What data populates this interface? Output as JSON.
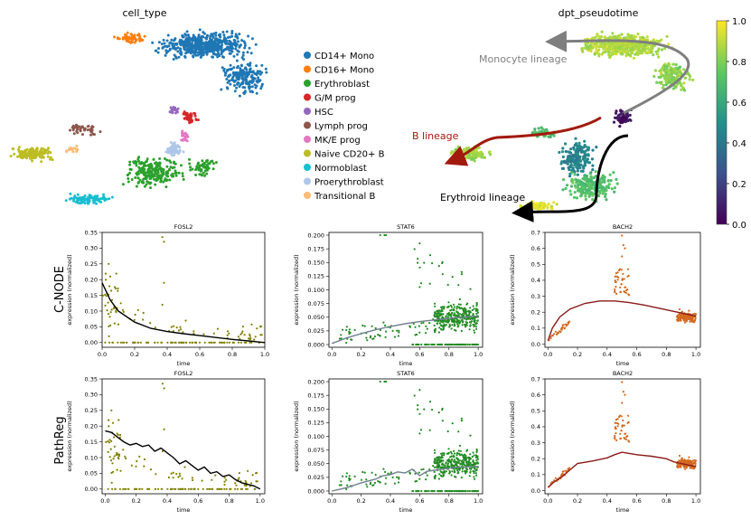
{
  "figure": {
    "umap_left": {
      "title": "cell_type",
      "legend": [
        {
          "label": "CD14+ Mono",
          "color": "#1f77b4"
        },
        {
          "label": "CD16+ Mono",
          "color": "#ff7f0e"
        },
        {
          "label": "Erythroblast",
          "color": "#2ca02c"
        },
        {
          "label": "G/M prog",
          "color": "#d62728"
        },
        {
          "label": "HSC",
          "color": "#9467bd"
        },
        {
          "label": "Lymph prog",
          "color": "#8c564b"
        },
        {
          "label": "MK/E prog",
          "color": "#e377c2"
        },
        {
          "label": "Naive CD20+ B",
          "color": "#bcbd22"
        },
        {
          "label": "Normoblast",
          "color": "#17becf"
        },
        {
          "label": "Proerythroblast",
          "color": "#aec7e8"
        },
        {
          "label": "Transitional B",
          "color": "#ffbb78"
        }
      ]
    },
    "umap_right": {
      "title": "dpt_pseudotime",
      "lineages": [
        {
          "label": "Monocyte lineage",
          "color": "#7f7f7f"
        },
        {
          "label": "B lineage",
          "color": "#a21a0e"
        },
        {
          "label": "Erythroid  lineage",
          "color": "#000000"
        }
      ],
      "colorbar": {
        "ticks": [
          "0.0",
          "0.2",
          "0.4",
          "0.6",
          "0.8",
          "1.0"
        ]
      }
    },
    "row_labels": [
      "C-NODE",
      "PathReg"
    ]
  },
  "chart_data": [
    {
      "type": "scatter",
      "id": "cnode-fosl2",
      "method": "C-NODE",
      "title": "FOSL2",
      "xlabel": "time",
      "ylabel": "expression (normalized)",
      "xlim": [
        0,
        1
      ],
      "ylim": [
        -0.015,
        0.35
      ],
      "xticks": [
        "0.0",
        "0.2",
        "0.4",
        "0.6",
        "0.8",
        "1.0"
      ],
      "yticks": [
        "0.00",
        "0.05",
        "0.10",
        "0.15",
        "0.20",
        "0.25",
        "0.30",
        "0.35"
      ],
      "point_color": "#808000",
      "line_color": "#000000",
      "curve": {
        "x": [
          0,
          0.05,
          0.1,
          0.2,
          0.3,
          0.4,
          0.5,
          0.6,
          0.7,
          0.8,
          0.9,
          1.0
        ],
        "y": [
          0.19,
          0.135,
          0.1,
          0.065,
          0.045,
          0.035,
          0.028,
          0.022,
          0.016,
          0.01,
          0.005,
          0.0
        ]
      }
    },
    {
      "type": "scatter",
      "id": "cnode-stat6",
      "method": "C-NODE",
      "title": "STAT6",
      "xlabel": "time",
      "ylabel": "expression (normalized)",
      "xlim": [
        -0.02,
        1.03
      ],
      "ylim": [
        -0.005,
        0.205
      ],
      "xticks": [
        "0.0",
        "0.2",
        "0.4",
        "0.6",
        "0.8",
        "1.0"
      ],
      "yticks": [
        "0.000",
        "0.025",
        "0.050",
        "0.075",
        "0.100",
        "0.125",
        "0.150",
        "0.175",
        "0.200"
      ],
      "point_color": "#228b22",
      "line_color": "#708090",
      "curve": {
        "x": [
          0,
          0.1,
          0.2,
          0.3,
          0.4,
          0.5,
          0.6,
          0.7,
          0.8,
          0.9,
          1.0
        ],
        "y": [
          0.002,
          0.012,
          0.02,
          0.027,
          0.033,
          0.038,
          0.042,
          0.045,
          0.048,
          0.05,
          0.052
        ]
      }
    },
    {
      "type": "scatter",
      "id": "cnode-bach2",
      "method": "C-NODE",
      "title": "BACH2",
      "xlabel": "time",
      "ylabel": "expression (normalized)",
      "xlim": [
        -0.02,
        1.03
      ],
      "ylim": [
        -0.02,
        0.7
      ],
      "xticks": [
        "0.0",
        "0.2",
        "0.4",
        "0.6",
        "0.8",
        "1.0"
      ],
      "yticks": [
        "0.0",
        "0.1",
        "0.2",
        "0.3",
        "0.4",
        "0.5",
        "0.6",
        "0.7"
      ],
      "point_color": "#d2691e",
      "line_color": "#8b1a1a",
      "curve": {
        "x": [
          0,
          0.03,
          0.08,
          0.15,
          0.25,
          0.35,
          0.45,
          0.55,
          0.65,
          0.75,
          0.85,
          0.95,
          1.0
        ],
        "y": [
          0.02,
          0.1,
          0.17,
          0.22,
          0.255,
          0.27,
          0.27,
          0.26,
          0.245,
          0.225,
          0.205,
          0.185,
          0.175
        ]
      }
    },
    {
      "type": "scatter",
      "id": "pathreg-fosl2",
      "method": "PathReg",
      "title": "FOSL2",
      "xlabel": "time",
      "ylabel": "expression (normalized)",
      "xlim": [
        -0.02,
        1.03
      ],
      "ylim": [
        -0.015,
        0.35
      ],
      "xticks": [
        "0.0",
        "0.2",
        "0.4",
        "0.6",
        "0.8",
        "1.0"
      ],
      "yticks": [
        "0.00",
        "0.05",
        "0.10",
        "0.15",
        "0.20",
        "0.25",
        "0.30",
        "0.35"
      ],
      "point_color": "#808000",
      "line_color": "#000000",
      "curve": {
        "x": [
          0,
          0.04,
          0.08,
          0.12,
          0.16,
          0.2,
          0.24,
          0.28,
          0.32,
          0.36,
          0.4,
          0.44,
          0.48,
          0.52,
          0.56,
          0.6,
          0.64,
          0.68,
          0.72,
          0.76,
          0.8,
          0.84,
          0.88,
          0.92,
          0.96,
          1.0
        ],
        "y": [
          0.185,
          0.18,
          0.165,
          0.15,
          0.14,
          0.145,
          0.135,
          0.14,
          0.12,
          0.13,
          0.115,
          0.1,
          0.08,
          0.09,
          0.075,
          0.06,
          0.07,
          0.05,
          0.055,
          0.04,
          0.045,
          0.03,
          0.02,
          0.015,
          0.01,
          0.0
        ]
      }
    },
    {
      "type": "scatter",
      "id": "pathreg-stat6",
      "method": "PathReg",
      "title": "STAT6",
      "xlabel": "time",
      "ylabel": "expression (normalized)",
      "xlim": [
        -0.02,
        1.03
      ],
      "ylim": [
        -0.005,
        0.205
      ],
      "xticks": [
        "0.0",
        "0.2",
        "0.4",
        "0.6",
        "0.8",
        "1.0"
      ],
      "yticks": [
        "0.000",
        "0.025",
        "0.050",
        "0.075",
        "0.100",
        "0.125",
        "0.150",
        "0.175",
        "0.200"
      ],
      "point_color": "#228b22",
      "line_color": "#708090",
      "curve": {
        "x": [
          0,
          0.1,
          0.2,
          0.3,
          0.35,
          0.4,
          0.45,
          0.5,
          0.55,
          0.6,
          0.65,
          0.7,
          0.8,
          0.9,
          1.0
        ],
        "y": [
          0.0,
          0.006,
          0.015,
          0.022,
          0.028,
          0.03,
          0.035,
          0.033,
          0.04,
          0.028,
          0.036,
          0.038,
          0.042,
          0.044,
          0.045
        ]
      }
    },
    {
      "type": "scatter",
      "id": "pathreg-bach2",
      "method": "PathReg",
      "title": "BACH2",
      "xlabel": "time",
      "ylabel": "expression (normalized)",
      "xlim": [
        -0.02,
        1.03
      ],
      "ylim": [
        -0.02,
        0.7
      ],
      "xticks": [
        "0.0",
        "0.2",
        "0.4",
        "0.6",
        "0.8",
        "1.0"
      ],
      "yticks": [
        "0.0",
        "0.1",
        "0.2",
        "0.3",
        "0.4",
        "0.5",
        "0.6",
        "0.7"
      ],
      "point_color": "#d2691e",
      "line_color": "#8b1a1a",
      "curve": {
        "x": [
          0,
          0.05,
          0.1,
          0.15,
          0.2,
          0.3,
          0.4,
          0.45,
          0.5,
          0.6,
          0.7,
          0.8,
          0.85,
          0.9,
          0.95,
          1.0
        ],
        "y": [
          0.02,
          0.06,
          0.09,
          0.13,
          0.17,
          0.185,
          0.205,
          0.225,
          0.24,
          0.225,
          0.215,
          0.2,
          0.18,
          0.17,
          0.16,
          0.15
        ]
      }
    }
  ]
}
